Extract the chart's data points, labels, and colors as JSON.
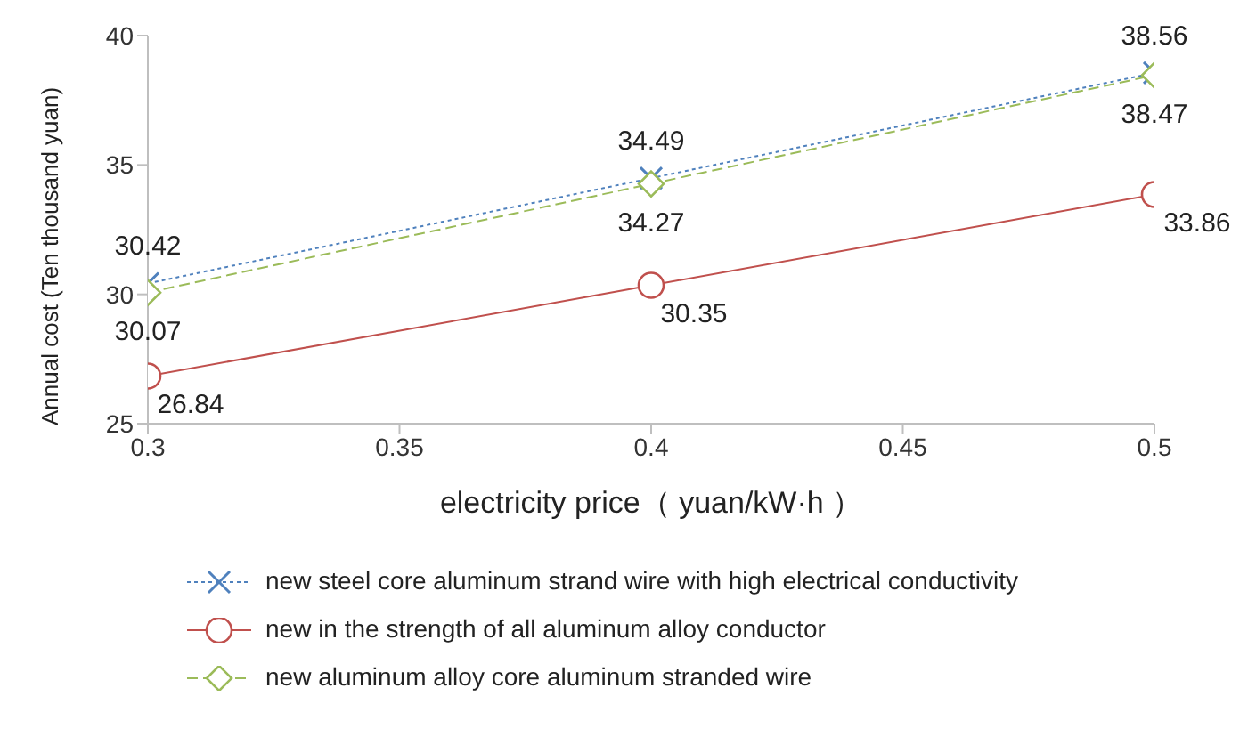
{
  "chart_data": {
    "type": "line",
    "xlabel": "electricity price（ yuan/kW·h ）",
    "ylabel": "Annual cost (Ten thousand yuan)",
    "x": [
      0.3,
      0.4,
      0.5
    ],
    "xlim": [
      0.3,
      0.5
    ],
    "xticks": [
      0.3,
      0.35,
      0.4,
      0.45,
      0.5
    ],
    "ylim": [
      25,
      40
    ],
    "yticks": [
      25,
      30,
      35,
      40
    ],
    "grid": false,
    "legend": "bottom",
    "data_labels": true,
    "series": [
      {
        "name": "new steel core aluminum strand wire with high electrical conductivity",
        "color": "#4f81bd",
        "values": [
          30.42,
          34.49,
          38.56
        ],
        "marker": "cross",
        "line_style": "dotted"
      },
      {
        "name": "new in the strength of all aluminum alloy conductor",
        "color": "#c0504d",
        "values": [
          26.84,
          30.35,
          33.86
        ],
        "marker": "circle",
        "line_style": "solid"
      },
      {
        "name": "new aluminum alloy core aluminum stranded wire",
        "color": "#9bbb59",
        "values": [
          30.07,
          34.27,
          38.47
        ],
        "marker": "diamond",
        "line_style": "dashed"
      }
    ]
  }
}
